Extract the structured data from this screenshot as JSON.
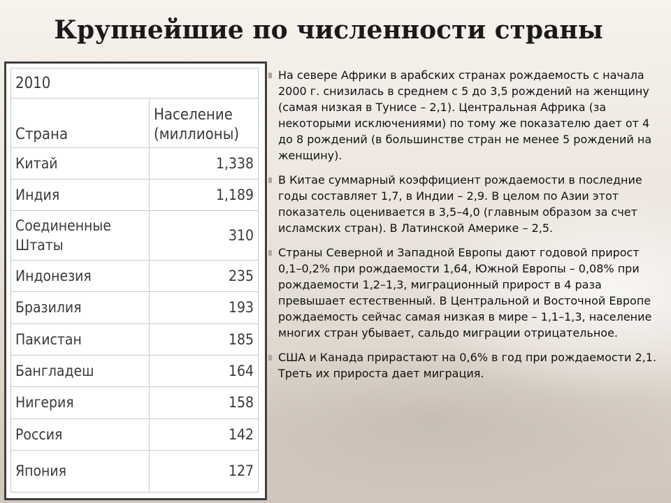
{
  "slide": {
    "title": "Крупнейшие по численности страны"
  },
  "table": {
    "year": "2010",
    "header_country": "Страна",
    "header_population_line1": "Население",
    "header_population_line2": "(миллионы)",
    "rows": [
      {
        "country": "Китай",
        "population": "1,338"
      },
      {
        "country": "Индия",
        "population": "1,189"
      },
      {
        "country_line1": "Соединенные",
        "country_line2": "Штаты",
        "population": "310"
      },
      {
        "country": "Индонезия",
        "population": "235"
      },
      {
        "country": "Бразилия",
        "population": "193"
      },
      {
        "country": "Пакистан",
        "population": "185"
      },
      {
        "country": "Бангладеш",
        "population": "164"
      },
      {
        "country": "Нигерия",
        "population": "158"
      },
      {
        "country": "Россия",
        "population": "142"
      },
      {
        "country": "Япония",
        "population": "127"
      }
    ]
  },
  "notes": [
    "На севере Африки в арабских странах рождаемость с начала 2000 г. снизилась в среднем с 5 до 3,5 рождений на женщину (самая низкая в Тунисе – 2,1). Центральная Африка (за некоторыми исключениями) по тому же показателю дает от 4 до 8 рождений (в большинстве стран не менее 5 рождений на женщину).",
    "В Китае суммарный коэффициент рождаемости в последние годы составляет 1,7, в Индии – 2,9. В целом по Азии этот показатель оценивается в 3,5–4,0 (главным образом за счет исламских стран). В Латинской Америке – 2,5.",
    "Страны Северной и Западной Европы дают годовой прирост 0,1–0,2% при рождаемости 1,64, Южной Европы – 0,08% при рождаемости 1,2–1,3, миграционный прирост в 4 раза превышает естественный. В Центральной и Восточной Европе рождаемость сейчас самая низкая в мире – 1,1–1,3, население многих стран убывает, сальдо миграции отрицательное.",
    "США и Канада прирастают на 0,6% в год при рождаемости 2,1. Треть их прироста дает миграция."
  ]
}
